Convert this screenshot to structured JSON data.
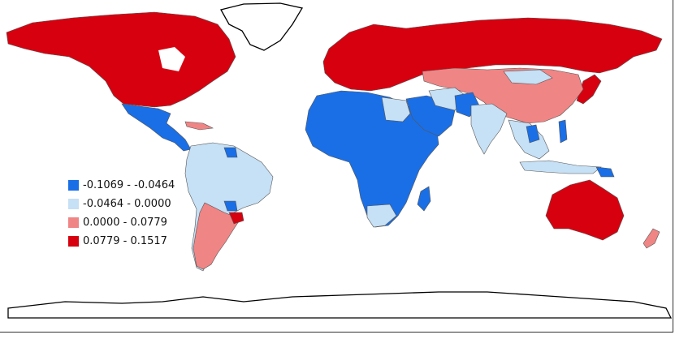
{
  "map": {
    "colors": {
      "class1": "#1a6fe6",
      "class2": "#c6e0f5",
      "class3": "#f08585",
      "class4": "#d7000f"
    }
  },
  "legend": {
    "items": [
      {
        "label": "-0.1069 - -0.0464",
        "color": "#1a6fe6"
      },
      {
        "label": "-0.0464 - 0.0000",
        "color": "#c6e0f5"
      },
      {
        "label": "0.0000 - 0.0779",
        "color": "#f08585"
      },
      {
        "label": "0.0779 - 0.1517",
        "color": "#d7000f"
      }
    ]
  }
}
